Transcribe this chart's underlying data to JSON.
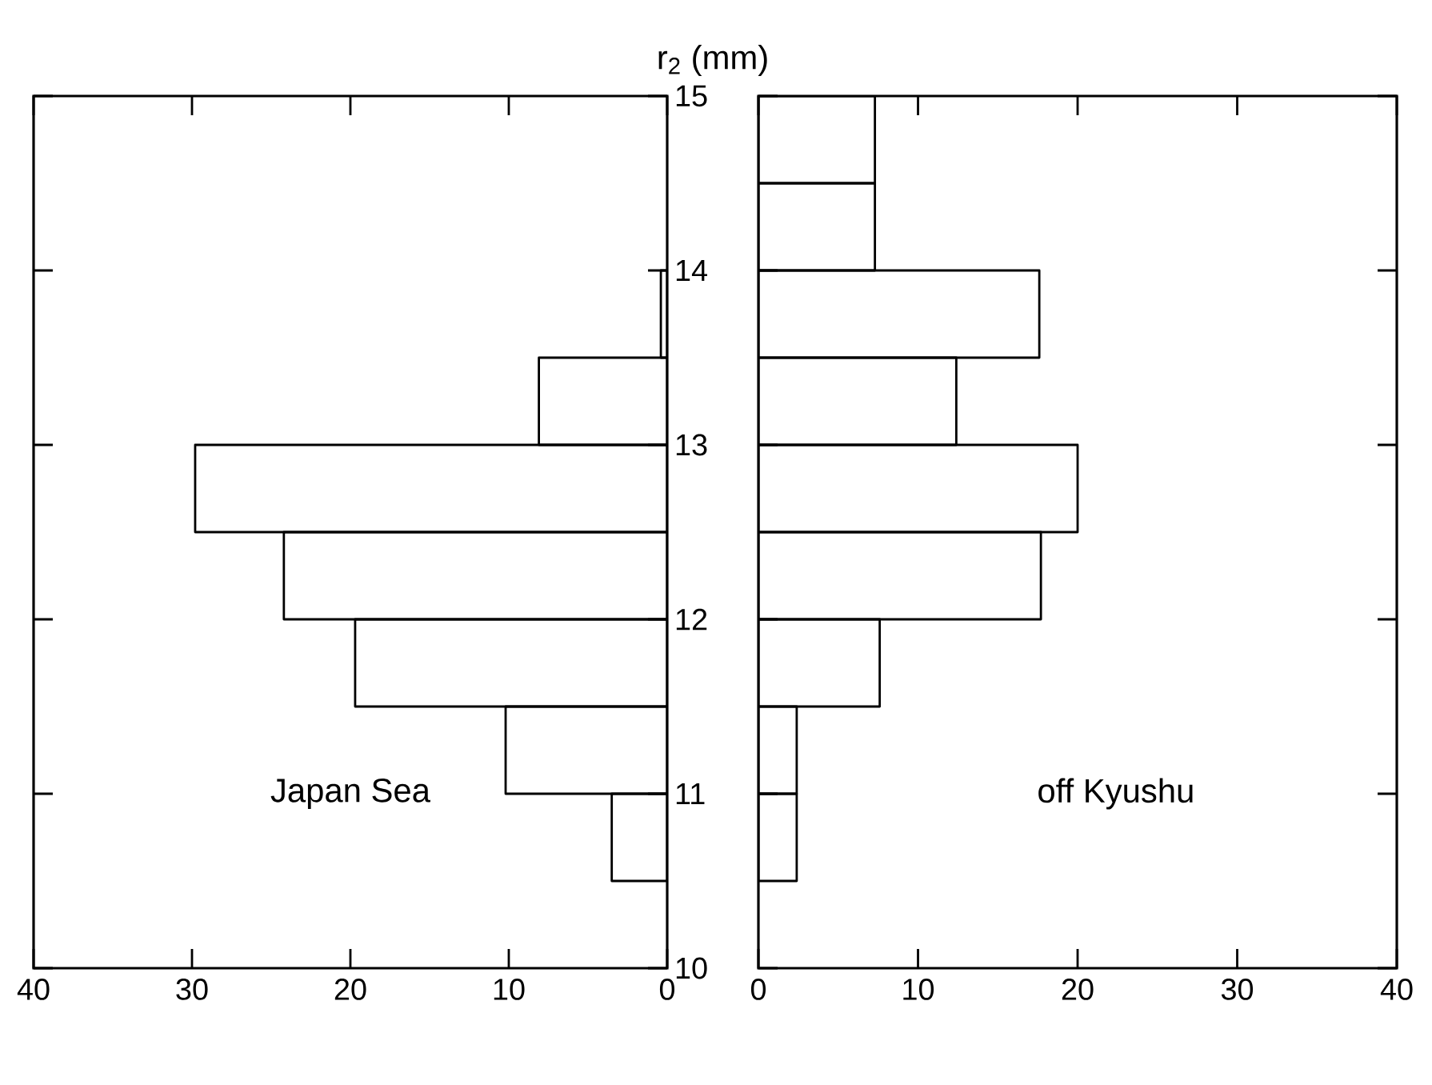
{
  "chart_data": [
    {
      "type": "histogram",
      "orientation": "horizontal",
      "ylabel": "r$_{2}$ (mm)",
      "bins": [
        10.5,
        11,
        11.5,
        12,
        12.5,
        13,
        13.5,
        14
      ],
      "values": [
        3.5,
        10.2,
        19.7,
        24.2,
        29.8,
        8.1,
        0.4
      ],
      "color": "#000000",
      "xlim": [
        40,
        0
      ],
      "xticks": [
        40,
        30,
        20,
        10,
        0
      ],
      "ylim": [
        10,
        15
      ],
      "yticks": [
        10,
        11,
        12,
        13,
        14,
        15
      ],
      "annotations": [
        "Japan Sea"
      ]
    },
    {
      "type": "histogram",
      "orientation": "horizontal",
      "bins": [
        10.5,
        11,
        11.5,
        12,
        12.5,
        13,
        13.5,
        14,
        14.5,
        15
      ],
      "values": [
        2.4,
        2.4,
        7.6,
        17.7,
        20.0,
        12.4,
        17.6,
        7.3,
        7.3
      ],
      "color": "#000000",
      "xlim": [
        0,
        40
      ],
      "xticks": [
        0,
        10,
        20,
        30,
        40
      ],
      "ylim": [
        10,
        15
      ],
      "yticks": [
        10,
        11,
        12,
        13,
        14,
        15
      ],
      "tick_labels": "x",
      "annotations": [
        "off Kyushu"
      ]
    }
  ]
}
